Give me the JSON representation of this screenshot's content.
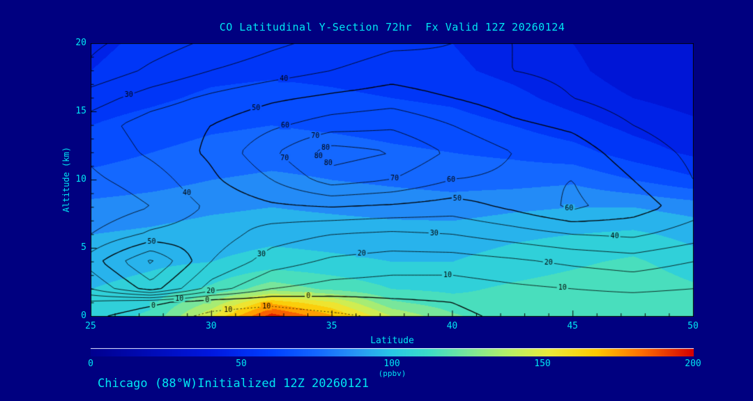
{
  "window": {
    "background_color": "#000080",
    "text_color": "#00e6f2"
  },
  "chart_data": {
    "type": "contour",
    "title": "CO Latitudinal Y-Section 72hr  Fx Valid 12Z 20260124",
    "xlabel": "Latitude",
    "ylabel": "Altitude (km)",
    "xlim": [
      25,
      50
    ],
    "ylim": [
      0,
      20
    ],
    "x_ticks": [
      25,
      30,
      35,
      40,
      45,
      50
    ],
    "y_ticks": [
      0,
      5,
      10,
      15,
      20
    ],
    "lats": [
      25,
      27.5,
      30,
      32.5,
      35,
      37.5,
      40,
      42.5,
      45,
      47.5,
      50
    ],
    "alts_km": [
      0,
      1,
      2,
      4,
      6,
      8,
      10,
      12,
      14,
      16,
      18,
      20
    ],
    "fill_values_ppbv": [
      [
        105,
        112,
        150,
        196,
        172,
        140,
        122,
        112,
        110,
        112,
        110
      ],
      [
        102,
        108,
        132,
        168,
        152,
        122,
        114,
        112,
        113,
        115,
        110
      ],
      [
        100,
        104,
        112,
        126,
        118,
        110,
        108,
        112,
        115,
        118,
        112
      ],
      [
        95,
        98,
        100,
        104,
        102,
        100,
        100,
        104,
        108,
        112,
        104
      ],
      [
        90,
        92,
        95,
        97,
        96,
        95,
        95,
        98,
        100,
        102,
        97
      ],
      [
        83,
        85,
        88,
        90,
        88,
        86,
        85,
        88,
        90,
        90,
        86
      ],
      [
        73,
        76,
        80,
        82,
        80,
        78,
        76,
        76,
        78,
        70,
        62
      ],
      [
        66,
        70,
        74,
        76,
        75,
        72,
        70,
        68,
        64,
        55,
        48
      ],
      [
        60,
        64,
        68,
        70,
        68,
        66,
        64,
        60,
        54,
        47,
        42
      ],
      [
        55,
        58,
        62,
        64,
        62,
        60,
        58,
        53,
        46,
        40,
        36
      ],
      [
        50,
        54,
        57,
        58,
        57,
        55,
        52,
        47,
        42,
        35,
        31
      ],
      [
        48,
        52,
        55,
        56,
        55,
        52,
        50,
        45,
        40,
        34,
        30
      ]
    ],
    "line_contour_values": [
      [
        2,
        -5,
        -12,
        -15,
        -12,
        -8,
        -2,
        2,
        3,
        2,
        2
      ],
      [
        8,
        2,
        -6,
        -8,
        -5,
        -2,
        0,
        4,
        5,
        5,
        4
      ],
      [
        30,
        55,
        25,
        10,
        6,
        5,
        5,
        8,
        10,
        12,
        10
      ],
      [
        45,
        72,
        40,
        25,
        18,
        15,
        15,
        18,
        22,
        25,
        20
      ],
      [
        30,
        42,
        46,
        35,
        30,
        28,
        30,
        35,
        40,
        42,
        35
      ],
      [
        22,
        30,
        42,
        48,
        50,
        48,
        45,
        52,
        62,
        55,
        45
      ],
      [
        28,
        35,
        48,
        60,
        75,
        70,
        60,
        58,
        60,
        50,
        40
      ],
      [
        32,
        42,
        52,
        68,
        85,
        80,
        68,
        60,
        55,
        45,
        38
      ],
      [
        35,
        45,
        50,
        58,
        65,
        68,
        60,
        52,
        48,
        40,
        35
      ],
      [
        25,
        35,
        42,
        48,
        52,
        55,
        50,
        45,
        40,
        35,
        30
      ],
      [
        12,
        22,
        30,
        35,
        40,
        45,
        42,
        40,
        38,
        35,
        32
      ],
      [
        8,
        15,
        22,
        28,
        33,
        38,
        40,
        40,
        40,
        38,
        36
      ]
    ],
    "line_levels": [
      -10,
      0,
      10,
      20,
      30,
      40,
      50,
      60,
      70,
      80
    ],
    "negative_contour_style": "dotted",
    "fill_band_step_ppbv": 10,
    "colormap_stops": [
      [
        0,
        "#000090"
      ],
      [
        40,
        "#0018e0"
      ],
      [
        60,
        "#0040ff"
      ],
      [
        75,
        "#1468ff"
      ],
      [
        88,
        "#2896f5"
      ],
      [
        100,
        "#28c8e6"
      ],
      [
        112,
        "#3cdcc8"
      ],
      [
        125,
        "#78e69b"
      ],
      [
        138,
        "#b4ef69"
      ],
      [
        152,
        "#ebeb3c"
      ],
      [
        168,
        "#ffc800"
      ],
      [
        183,
        "#ff6e00"
      ],
      [
        200,
        "#d20000"
      ]
    ],
    "colorbar": {
      "min": 0,
      "max": 200,
      "ticks": [
        0,
        50,
        100,
        150,
        200
      ],
      "units": "(ppbv)"
    }
  },
  "footer": {
    "text": "Chicago (88°W)Initialized 12Z 20260121"
  }
}
